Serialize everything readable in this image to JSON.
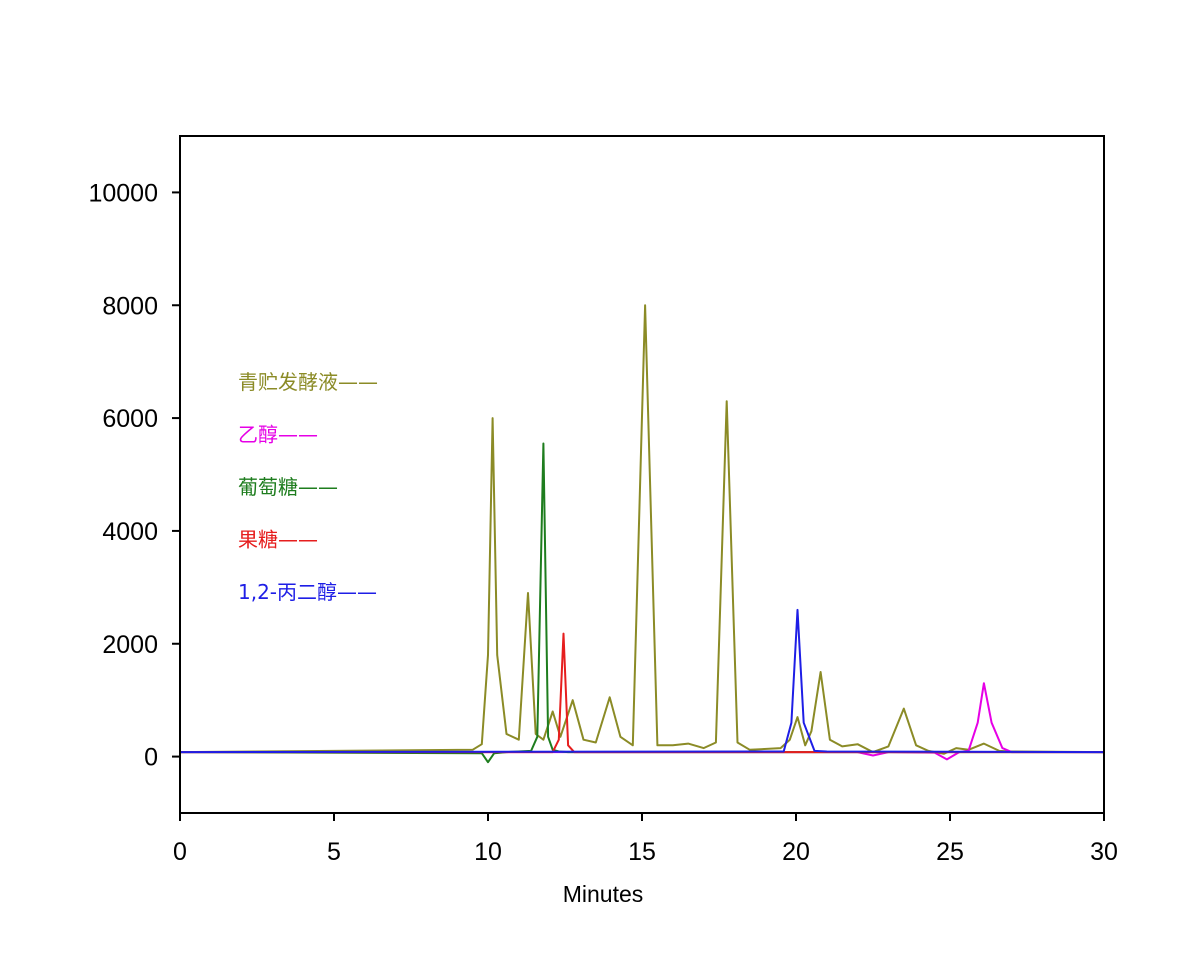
{
  "chart_data": {
    "type": "line",
    "title": "",
    "xlabel": "Minutes",
    "ylabel": "",
    "xlim": [
      0,
      30
    ],
    "ylim": [
      -1000,
      11000
    ],
    "xticks": [
      0,
      5,
      10,
      15,
      20,
      25,
      30
    ],
    "xtick_labels": [
      "0",
      "5",
      "10",
      "15",
      "20",
      "25",
      "30"
    ],
    "yticks": [
      0,
      2000,
      4000,
      6000,
      8000,
      10000
    ],
    "ytick_labels": [
      "0",
      "2000",
      "4000",
      "6000",
      "8000",
      "10000"
    ],
    "grid": false,
    "legend_position": "left",
    "series": [
      {
        "name": "青贮发酵液——",
        "color": "#8b8b26",
        "x": [
          0,
          9.5,
          9.8,
          10.0,
          10.15,
          10.3,
          10.6,
          11.0,
          11.3,
          11.55,
          11.8,
          12.1,
          12.35,
          12.75,
          13.1,
          13.5,
          13.95,
          14.3,
          14.7,
          15.1,
          15.5,
          16.0,
          16.5,
          17.0,
          17.4,
          17.75,
          18.1,
          18.5,
          19.5,
          19.8,
          20.05,
          20.3,
          20.5,
          20.8,
          21.1,
          21.5,
          22.0,
          22.5,
          23.0,
          23.5,
          23.9,
          24.3,
          24.8,
          25.2,
          25.6,
          26.1,
          26.6,
          27.0,
          30
        ],
        "y": [
          80,
          120,
          220,
          1800,
          6000,
          1800,
          400,
          300,
          2900,
          400,
          300,
          800,
          350,
          1000,
          300,
          250,
          1050,
          350,
          200,
          8000,
          200,
          200,
          230,
          150,
          250,
          6300,
          250,
          120,
          150,
          300,
          700,
          200,
          450,
          1500,
          300,
          180,
          220,
          80,
          180,
          850,
          200,
          100,
          50,
          150,
          120,
          230,
          100,
          90,
          80
        ]
      },
      {
        "name": "乙醇——",
        "color": "#e600e6",
        "x": [
          0,
          22.0,
          22.5,
          23.0,
          24.5,
          24.9,
          25.3,
          25.6,
          25.9,
          26.1,
          26.35,
          26.7,
          27.0,
          30
        ],
        "y": [
          80,
          80,
          20,
          80,
          70,
          -50,
          80,
          100,
          600,
          1300,
          600,
          150,
          80,
          80
        ]
      },
      {
        "name": "葡萄糖——",
        "color": "#1e7d1e",
        "x": [
          0,
          9.8,
          10.0,
          10.2,
          10.6,
          11.4,
          11.6,
          11.8,
          11.95,
          12.1,
          12.3,
          12.6,
          30
        ],
        "y": [
          80,
          60,
          -100,
          60,
          80,
          100,
          350,
          5550,
          350,
          120,
          90,
          80,
          80
        ]
      },
      {
        "name": "果糖——",
        "color": "#e61e1e",
        "x": [
          0,
          12.1,
          12.3,
          12.45,
          12.6,
          12.8,
          30
        ],
        "y": [
          80,
          80,
          300,
          2180,
          200,
          80,
          80
        ]
      },
      {
        "name": "1,2-丙二醇——",
        "color": "#1e1ee6",
        "x": [
          0,
          19.6,
          19.85,
          20.05,
          20.25,
          20.6,
          21.0,
          30
        ],
        "y": [
          80,
          90,
          600,
          2600,
          600,
          100,
          90,
          80
        ]
      }
    ]
  }
}
